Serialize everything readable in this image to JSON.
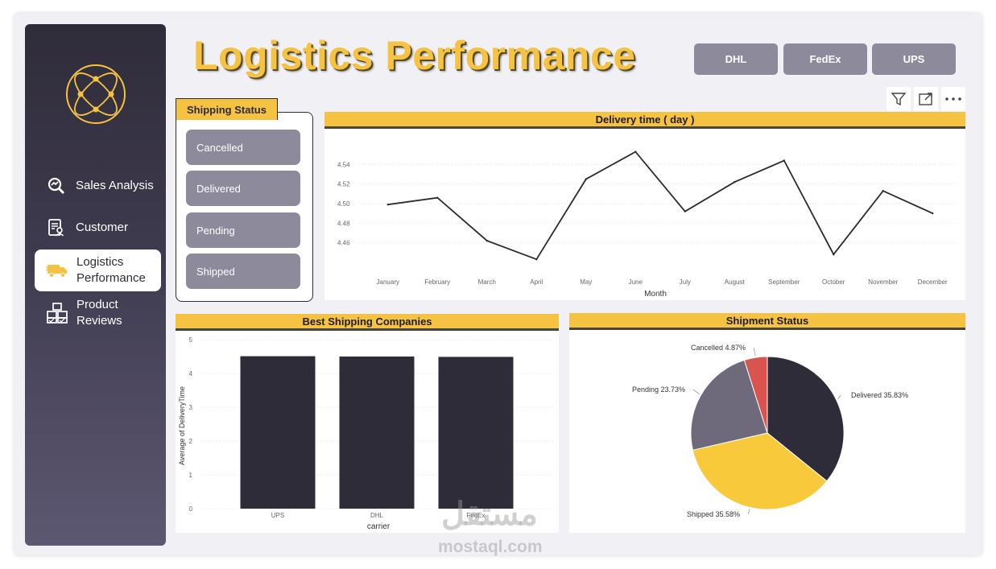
{
  "header": {
    "title": "Logistics Performance"
  },
  "carriers": [
    "DHL",
    "FedEx",
    "UPS"
  ],
  "sidebar": {
    "items": [
      {
        "label": "Sales Analysis",
        "icon": "search-chart-icon",
        "active": false
      },
      {
        "label": "Customer",
        "icon": "customer-document-icon",
        "active": false
      },
      {
        "label": "Logistics Performance",
        "icon": "delivery-truck-icon",
        "active": true
      },
      {
        "label": "Product Reviews",
        "icon": "boxes-icon",
        "active": false
      }
    ]
  },
  "slicer": {
    "title": "Shipping Status",
    "options": [
      "Cancelled",
      "Delivered",
      "Pending",
      "Shipped"
    ]
  },
  "toolbar": {
    "icons": [
      "filter-icon",
      "focus-mode-icon",
      "more-options-icon"
    ]
  },
  "colors": {
    "accent": "#f5c242",
    "dark": "#2f2c3a",
    "slicer": "#8d8a9c",
    "cancelled": "#d9534f",
    "pending": "#6e6a7c"
  },
  "watermark": {
    "text": "mostaql.com",
    "arabic": "مستقل"
  },
  "chart_data": [
    {
      "type": "line",
      "title": "Delivery time ( day )",
      "xlabel": "Month",
      "ylabel": "",
      "categories": [
        "January",
        "February",
        "March",
        "April",
        "May",
        "June",
        "July",
        "August",
        "September",
        "October",
        "November",
        "December"
      ],
      "values": [
        4.499,
        4.506,
        4.462,
        4.443,
        4.525,
        4.553,
        4.492,
        4.522,
        4.544,
        4.448,
        4.513,
        4.49
      ],
      "yticks": [
        "4.46",
        "4.48",
        "4.50",
        "4.52",
        "4.54"
      ],
      "ylim": [
        4.43,
        4.565
      ],
      "grid": true
    },
    {
      "type": "bar",
      "title": "Best Shipping Companies",
      "xlabel": "carrier",
      "ylabel": "Average of DeliveryTime",
      "categories": [
        "UPS",
        "DHL",
        "FedEx"
      ],
      "values": [
        4.51,
        4.5,
        4.49
      ],
      "yticks": [
        "0",
        "1",
        "2",
        "3",
        "4",
        "5"
      ],
      "ylim": [
        0,
        5
      ],
      "grid": true
    },
    {
      "type": "pie",
      "title": "Shipment Status",
      "slices": [
        {
          "label": "Delivered",
          "value": 35.83,
          "text": "Delivered 35.83%",
          "color": "#2f2c3a"
        },
        {
          "label": "Shipped",
          "value": 35.58,
          "text": "Shipped 35.58%",
          "color": "#f8c93a"
        },
        {
          "label": "Pending",
          "value": 23.73,
          "text": "Pending 23.73%",
          "color": "#6e6a7c"
        },
        {
          "label": "Cancelled",
          "value": 4.87,
          "text": "Cancelled 4.87%",
          "color": "#d9534f"
        }
      ]
    }
  ]
}
